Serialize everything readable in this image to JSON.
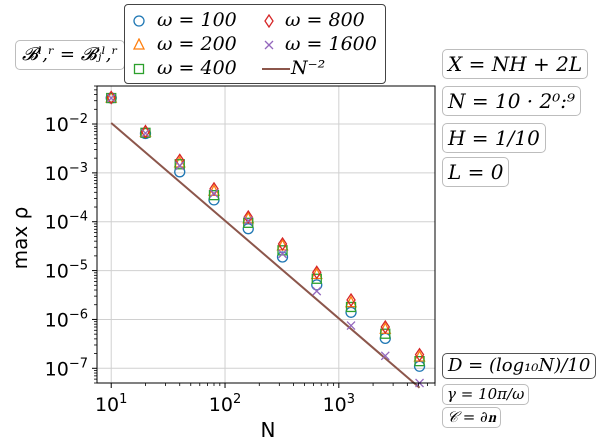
{
  "chart_data": {
    "type": "scatter",
    "x_scale": "log",
    "y_scale": "log",
    "xlim": [
      7.5,
      7000
    ],
    "ylim": [
      5e-08,
      0.06
    ],
    "grid": true,
    "xlabel": "N",
    "ylabel": "max ρ",
    "x_ticks": [
      10,
      100,
      1000
    ],
    "x_tick_labels": [
      {
        "base": "10",
        "exp": "1"
      },
      {
        "base": "10",
        "exp": "2"
      },
      {
        "base": "10",
        "exp": "3"
      }
    ],
    "y_ticks": [
      1e-07,
      1e-06,
      1e-05,
      0.0001,
      0.001,
      0.01
    ],
    "y_tick_labels": [
      {
        "base": "10",
        "exp": "−7"
      },
      {
        "base": "10",
        "exp": "−6"
      },
      {
        "base": "10",
        "exp": "−5"
      },
      {
        "base": "10",
        "exp": "−4"
      },
      {
        "base": "10",
        "exp": "−3"
      },
      {
        "base": "10",
        "exp": "−2"
      }
    ],
    "x": [
      10,
      20,
      40,
      80,
      160,
      320,
      640,
      1280,
      2560,
      5120
    ],
    "series": [
      {
        "name": "ω = 100",
        "marker": "circle",
        "color": "#1f77b4",
        "values": [
          0.034,
          0.0064,
          0.00105,
          0.00028,
          7.2e-05,
          1.9e-05,
          5.1e-06,
          1.4e-06,
          4.1e-07,
          1.1e-07
        ]
      },
      {
        "name": "ω = 200",
        "marker": "triangle",
        "color": "#ff7f0e",
        "values": [
          0.034,
          0.0068,
          0.0016,
          0.00042,
          0.000115,
          3.2e-05,
          8.3e-06,
          2.2e-06,
          6.3e-07,
          1.7e-07
        ]
      },
      {
        "name": "ω = 400",
        "marker": "square",
        "color": "#2ca02c",
        "values": [
          0.034,
          0.0066,
          0.0015,
          0.00035,
          9.5e-05,
          2.6e-05,
          6.8e-06,
          1.8e-06,
          5.1e-07,
          1.4e-07
        ]
      },
      {
        "name": "ω = 800",
        "marker": "diamond",
        "color": "#d62728",
        "values": [
          0.035,
          0.007,
          0.0018,
          0.00047,
          0.000125,
          3.5e-05,
          9.2e-06,
          2.5e-06,
          7e-07,
          1.9e-07
        ]
      },
      {
        "name": "ω = 1600",
        "marker": "x",
        "color": "#9467bd",
        "values": [
          0.034,
          0.0065,
          0.0014,
          0.00038,
          0.000105,
          2.2e-05,
          3.8e-06,
          7.5e-07,
          1.8e-07,
          5e-08
        ]
      }
    ],
    "reference_line": {
      "name": "N⁻²",
      "color": "#8c564b",
      "x": [
        10,
        5120
      ],
      "values": [
        0.0105,
        4e-08
      ]
    }
  },
  "annotations": {
    "bc_label": "𝓑ˡ,ʳ = 𝓑ⱼˡ,ʳ",
    "x_def": "X = NH + 2L",
    "n_def": "N = 10 · 2⁰:⁹",
    "h_def": "H = 1/10",
    "l_def": "L = 0",
    "d_def": "D = (log₁₀N)/10",
    "gamma_def": "γ = 10π/ω",
    "c_def": "𝒞 = ∂𝐧"
  },
  "legend": {
    "items": [
      {
        "label": "ω = 100",
        "marker": "circle",
        "color": "#1f77b4"
      },
      {
        "label": "ω = 200",
        "marker": "triangle",
        "color": "#ff7f0e"
      },
      {
        "label": "ω = 400",
        "marker": "square",
        "color": "#2ca02c"
      },
      {
        "label": "ω = 800",
        "marker": "diamond",
        "color": "#d62728"
      },
      {
        "label": "ω = 1600",
        "marker": "x",
        "color": "#9467bd"
      },
      {
        "label": "N⁻²",
        "marker": "line",
        "color": "#8c564b"
      }
    ]
  }
}
